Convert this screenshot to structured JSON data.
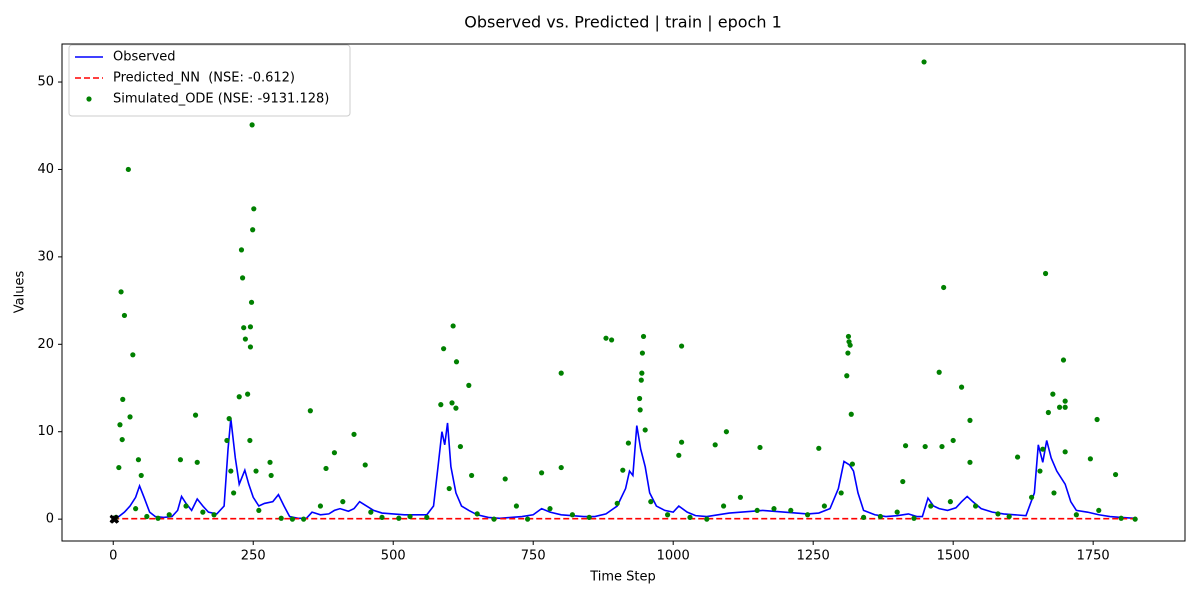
{
  "chart_data": {
    "type": "line",
    "title": "Observed vs. Predicted | train | epoch 1",
    "xlabel": "Time Step",
    "ylabel": "Values",
    "xlim": [
      -91.5,
      1914
    ],
    "ylim": [
      -2.5,
      54.35
    ],
    "xticks": [
      0,
      250,
      500,
      750,
      1000,
      1250,
      1500,
      1750
    ],
    "yticks": [
      0,
      10,
      20,
      30,
      40,
      50
    ],
    "legend": "upper left",
    "series": [
      {
        "name": "Observed",
        "type": "line",
        "color": "#0000ff",
        "style": "solid",
        "x": [
          0,
          10,
          20,
          30,
          40,
          47,
          55,
          65,
          75,
          90,
          105,
          115,
          122,
          130,
          140,
          150,
          160,
          170,
          185,
          198,
          205,
          210,
          218,
          225,
          235,
          242,
          250,
          260,
          270,
          285,
          295,
          305,
          315,
          330,
          345,
          355,
          370,
          385,
          395,
          405,
          420,
          430,
          440,
          450,
          465,
          480,
          500,
          520,
          540,
          560,
          572,
          580,
          587,
          592,
          597,
          603,
          612,
          622,
          635,
          650,
          670,
          690,
          710,
          730,
          750,
          765,
          780,
          800,
          820,
          840,
          860,
          880,
          900,
          915,
          922,
          928,
          935,
          942,
          950,
          958,
          970,
          985,
          1000,
          1010,
          1025,
          1040,
          1060,
          1080,
          1100,
          1120,
          1140,
          1160,
          1180,
          1200,
          1220,
          1240,
          1260,
          1280,
          1295,
          1305,
          1315,
          1322,
          1330,
          1340,
          1360,
          1380,
          1400,
          1420,
          1435,
          1445,
          1455,
          1465,
          1475,
          1490,
          1505,
          1515,
          1525,
          1535,
          1550,
          1570,
          1590,
          1610,
          1630,
          1645,
          1652,
          1660,
          1667,
          1675,
          1685,
          1700,
          1710,
          1720,
          1740,
          1760,
          1780,
          1800,
          1825
        ],
        "values": [
          0.1,
          0.3,
          0.8,
          1.5,
          2.5,
          3.8,
          2.5,
          0.8,
          0.3,
          0.2,
          0.3,
          1.0,
          2.6,
          1.8,
          1.0,
          2.3,
          1.5,
          0.8,
          0.6,
          1.5,
          8,
          11.5,
          7,
          4,
          5.6,
          4,
          2.5,
          1.5,
          1.8,
          2.0,
          2.8,
          1.5,
          0.3,
          0.1,
          0.1,
          0.8,
          0.5,
          0.6,
          1.0,
          1.2,
          0.9,
          1.2,
          2.0,
          1.6,
          1.0,
          0.7,
          0.6,
          0.5,
          0.5,
          0.5,
          1.5,
          6,
          10,
          8.5,
          11,
          6,
          3,
          1.5,
          1.0,
          0.5,
          0.2,
          0.1,
          0.2,
          0.3,
          0.5,
          1.2,
          0.8,
          0.5,
          0.4,
          0.3,
          0.3,
          0.6,
          1.5,
          3.5,
          5.5,
          5,
          10.7,
          8,
          6,
          3,
          1.5,
          1.0,
          0.8,
          1.5,
          0.8,
          0.4,
          0.3,
          0.5,
          0.7,
          0.8,
          0.9,
          1.0,
          0.9,
          0.8,
          0.7,
          0.6,
          0.7,
          1.2,
          3.5,
          6.6,
          6.2,
          5.5,
          3,
          1.0,
          0.5,
          0.3,
          0.4,
          0.6,
          0.3,
          0.3,
          2.4,
          1.5,
          1.2,
          1.0,
          1.3,
          2.0,
          2.6,
          2.0,
          1.2,
          0.8,
          0.6,
          0.5,
          0.4,
          3,
          8.5,
          6.5,
          9,
          7,
          5.5,
          4,
          2,
          1.0,
          0.8,
          0.5,
          0.3,
          0.2,
          0.1
        ]
      },
      {
        "name": "Predicted_NN  (NSE: -0.612)",
        "type": "line",
        "color": "#ff0000",
        "style": "dashed",
        "x": [
          0,
          1825
        ],
        "values": [
          0.05,
          0.05
        ]
      },
      {
        "name": "Simulated_ODE (NSE: -9131.128)",
        "type": "scatter",
        "color": "#008000",
        "x": [
          14,
          17,
          20,
          27,
          30,
          35,
          12,
          16,
          10,
          45,
          50,
          120,
          147,
          150,
          203,
          207,
          210,
          225,
          229,
          231,
          233,
          236,
          240,
          245,
          245,
          247,
          248,
          249,
          251,
          244,
          255,
          280,
          282,
          352,
          395,
          430,
          450,
          380,
          585,
          590,
          605,
          607,
          613,
          612,
          620,
          635,
          640,
          700,
          765,
          800,
          800,
          880,
          890,
          910,
          920,
          940,
          941,
          943,
          944,
          945,
          947,
          950,
          1010,
          1015,
          1015,
          1075,
          1095,
          1155,
          1260,
          1310,
          1312,
          1313,
          1314,
          1316,
          1318,
          1320,
          1410,
          1415,
          1448,
          1450,
          1475,
          1483,
          1480,
          1500,
          1515,
          1530,
          1530,
          1615,
          1665,
          1670,
          1678,
          1690,
          1697,
          1700,
          1700,
          1745,
          1757,
          1790,
          1700,
          1660,
          1655,
          5,
          40,
          60,
          80,
          100,
          130,
          160,
          180,
          215,
          260,
          300,
          320,
          340,
          370,
          410,
          460,
          480,
          510,
          530,
          560,
          600,
          650,
          680,
          720,
          740,
          780,
          820,
          850,
          900,
          960,
          990,
          1030,
          1060,
          1090,
          1120,
          1150,
          1180,
          1210,
          1240,
          1270,
          1300,
          1340,
          1370,
          1400,
          1430,
          1460,
          1495,
          1540,
          1580,
          1600,
          1640,
          1680,
          1720,
          1760,
          1800,
          1825
        ],
        "values": [
          26,
          13.7,
          23.3,
          40,
          11.7,
          18.8,
          10.8,
          9.1,
          5.9,
          6.8,
          5,
          6.8,
          11.9,
          6.5,
          9,
          11.5,
          5.5,
          14,
          30.8,
          27.6,
          21.9,
          20.6,
          14.3,
          19.7,
          22,
          24.8,
          45.1,
          33.1,
          35.5,
          9,
          5.5,
          6.5,
          5,
          12.4,
          7.6,
          9.7,
          6.2,
          5.8,
          13.1,
          19.5,
          13.3,
          22.1,
          18,
          12.7,
          8.3,
          15.3,
          5,
          4.6,
          5.3,
          16.7,
          5.9,
          20.7,
          20.5,
          5.6,
          8.7,
          13.8,
          12.5,
          15.9,
          16.7,
          19,
          20.9,
          10.2,
          7.3,
          19.8,
          8.8,
          8.5,
          10,
          8.2,
          8.1,
          16.4,
          19,
          20.9,
          20.3,
          19.9,
          12,
          6.3,
          4.3,
          8.4,
          52.3,
          8.3,
          16.8,
          26.5,
          8.3,
          9,
          15.1,
          11.3,
          6.5,
          7.1,
          28.1,
          12.2,
          14.3,
          12.8,
          18.2,
          13.5,
          12.8,
          6.9,
          11.4,
          5.1,
          7.7,
          8,
          5.5,
          0.2,
          1.2,
          0.3,
          0.1,
          0.5,
          1.5,
          0.8,
          0.5,
          3,
          1,
          0.1,
          0,
          0,
          1.5,
          2,
          0.8,
          0.2,
          0.1,
          0.3,
          0.2,
          3.5,
          0.6,
          0,
          1.5,
          0,
          1.2,
          0.5,
          0.2,
          1.8,
          2,
          0.5,
          0.2,
          0,
          1.5,
          2.5,
          1,
          1.2,
          1,
          0.5,
          1.5,
          3,
          0.2,
          0.3,
          0.8,
          0.1,
          1.5,
          2,
          1.5,
          0.6,
          0.3,
          2.5,
          3,
          0.5,
          1,
          0.1,
          0
        ]
      },
      {
        "type": "scatter",
        "marker": "x",
        "color": "#000000",
        "x": [
          0,
          2,
          4,
          1
        ],
        "values": [
          0,
          -0.1,
          0,
          0.1
        ]
      }
    ]
  }
}
